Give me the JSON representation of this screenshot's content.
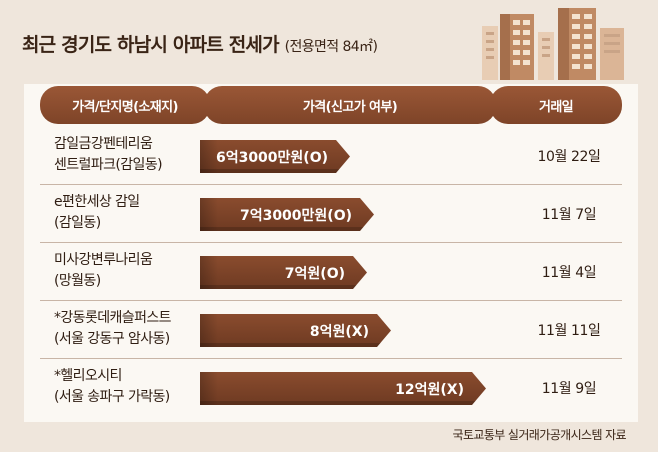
{
  "title": "최근 경기도 하남시 아파트 전세가",
  "subtitle": "(전용면적 84㎡)",
  "headers": [
    "가격/단지명(소재지)",
    "가격(신고가 여부)",
    "거래일"
  ],
  "source": "국토교통부 실거래가공개시스템 자료",
  "colors": {
    "bar": "#7e4428",
    "header": "#8d4d30",
    "background": "#efe6dc"
  },
  "chart_data": {
    "type": "bar",
    "orientation": "horizontal",
    "unit": "만원",
    "categories": [
      "감일금강펜테리움 센트럴파크(감일동)",
      "e편한세상 감일 (감일동)",
      "미사강변루나리움 (망월동)",
      "*강동롯데캐슬퍼스트 (서울 강동구 암사동)",
      "*헬리오시티 (서울 송파구 가락동)"
    ],
    "values": [
      63000,
      73000,
      70000,
      80000,
      120000
    ],
    "labels": [
      "6억3000만원(O)",
      "7억3000만원(O)",
      "7억원(O)",
      "8억원(X)",
      "12억원(X)"
    ],
    "new_high": [
      "O",
      "O",
      "O",
      "X",
      "X"
    ],
    "dates": [
      "10월 22일",
      "11월 7일",
      "11월 4일",
      "11월 11일",
      "11월 9일"
    ]
  },
  "rows": [
    {
      "name1": "감일금강펜테리움",
      "name2": "센트럴파크(감일동)",
      "price": "6억3000만원(O)",
      "date": "10월 22일"
    },
    {
      "name1": "e편한세상 감일",
      "name2": "(감일동)",
      "price": "7억3000만원(O)",
      "date": "11월 7일"
    },
    {
      "name1": "미사강변루나리움",
      "name2": "(망월동)",
      "price": "7억원(O)",
      "date": "11월 4일"
    },
    {
      "name1": "*강동롯데캐슬퍼스트",
      "name2": "(서울 강동구 암사동)",
      "price": "8억원(X)",
      "date": "11월 11일"
    },
    {
      "name1": "*헬리오시티",
      "name2": "(서울 송파구 가락동)",
      "price": "12억원(X)",
      "date": "11월 9일"
    }
  ]
}
